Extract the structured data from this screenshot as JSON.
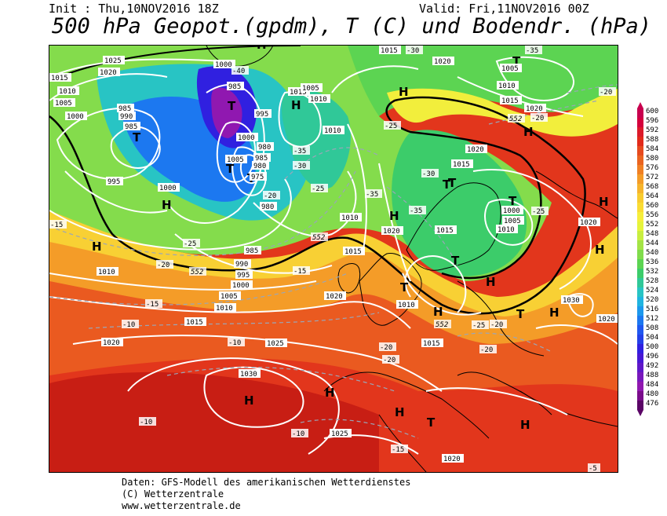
{
  "header": {
    "init": "Init : Thu,10NOV2016 18Z",
    "valid": "Valid: Fri,11NOV2016 00Z",
    "title": "500 hPa Geopot.(gpdm), T (C) und Bodendr. (hPa)"
  },
  "legend": {
    "values": [
      "600",
      "596",
      "592",
      "588",
      "584",
      "580",
      "576",
      "572",
      "568",
      "564",
      "560",
      "556",
      "552",
      "548",
      "544",
      "540",
      "536",
      "532",
      "528",
      "524",
      "520",
      "516",
      "512",
      "508",
      "504",
      "500",
      "496",
      "492",
      "488",
      "484",
      "480",
      "476"
    ],
    "colors": [
      "#c8004e",
      "#d4003c",
      "#dc1a2a",
      "#e22a1a",
      "#e64a1e",
      "#ea6420",
      "#f08024",
      "#f49c28",
      "#f6b42c",
      "#f8cc30",
      "#fadc34",
      "#f6ee3c",
      "#e6f43c",
      "#c8ee40",
      "#a4e446",
      "#80dc4c",
      "#5cd452",
      "#3ccc6a",
      "#30c898",
      "#28c4c4",
      "#20b4e0",
      "#1c98ec",
      "#1c78f0",
      "#2058f0",
      "#2440e8",
      "#3020e0",
      "#4818d4",
      "#6018c8",
      "#7818bc",
      "#9018b0",
      "#7a0c8c",
      "#5a0466"
    ]
  },
  "map": {
    "pressure_labels": [
      "1025",
      "1020",
      "1015",
      "1010",
      "1005",
      "1000",
      "995",
      "990",
      "985",
      "980",
      "1030"
    ],
    "pressure_centers": [
      "H",
      "T"
    ],
    "temperature_labels": [
      "-40",
      "-35",
      "-30",
      "-25",
      "-20",
      "-15",
      "-10",
      "-5"
    ],
    "geopotential_labels": [
      "552"
    ],
    "sample_label_1000": "1000",
    "sample_label_985": "985",
    "sample_label_990": "990",
    "sample_label_995": "995",
    "sample_label_1005": "1005",
    "sample_label_1010": "1010",
    "sample_label_1015": "1015",
    "sample_label_1020": "1020",
    "sample_label_1025": "1025",
    "sample_label_1030": "1030",
    "sample_label_980": "980",
    "sample_temp_m40": "-40",
    "sample_temp_m35": "-35",
    "sample_temp_m30": "-30",
    "sample_temp_m25": "-25",
    "sample_temp_m20": "-20",
    "sample_temp_m15": "-15",
    "sample_temp_m10": "-10",
    "sample_temp_m5": "-5",
    "sample_geo_552": "552",
    "high": "H",
    "low": "T"
  },
  "footer": {
    "line1": "Daten: GFS-Modell des amerikanischen Wetterdienstes",
    "line2": "(C) Wetterzentrale",
    "line3": "www.wetterzentrale.de"
  }
}
